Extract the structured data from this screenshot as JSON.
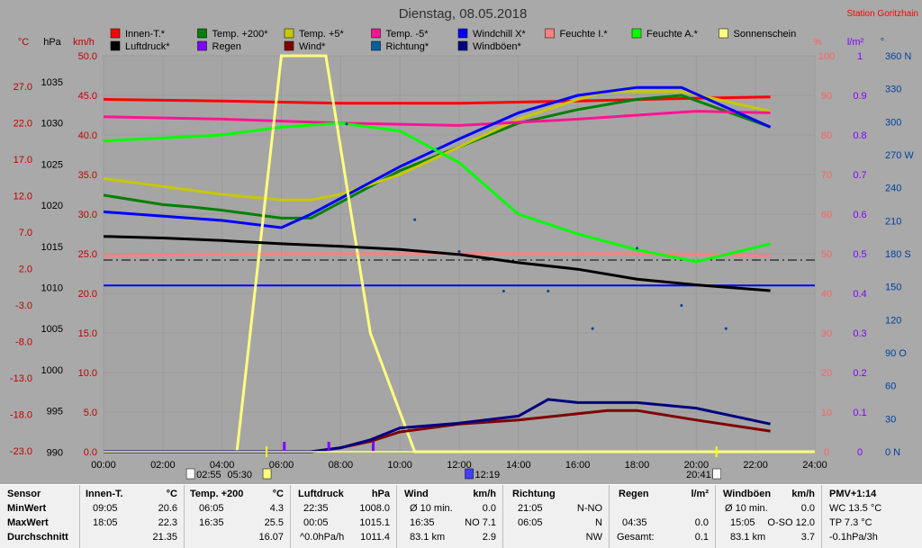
{
  "header": {
    "title": "Dienstag, 08.05.2018",
    "station": "Station Goritzhain"
  },
  "legend": [
    {
      "label": "Innen-T.*",
      "color": "#ff0000"
    },
    {
      "label": "Temp. +200*",
      "color": "#008000"
    },
    {
      "label": "Temp. +5*",
      "color": "#c8c800"
    },
    {
      "label": "Temp. -5*",
      "color": "#ff1493"
    },
    {
      "label": "Windchill X*",
      "color": "#0000ff"
    },
    {
      "label": "Feuchte I.*",
      "color": "#ff8080"
    },
    {
      "label": "Feuchte A.*",
      "color": "#00ff00"
    },
    {
      "label": "Sonnenschein",
      "color": "#ffff80"
    },
    {
      "label": "Luftdruck*",
      "color": "#000000"
    },
    {
      "label": "Regen",
      "color": "#8000ff"
    },
    {
      "label": "Wind*",
      "color": "#800000"
    },
    {
      "label": "Richtung*",
      "color": "#0060a0"
    },
    {
      "label": "Windböen*",
      "color": "#000080"
    }
  ],
  "axes": {
    "temp_label": "°C",
    "pressure_label": "hPa",
    "wind_label": "km/h",
    "humidity_label": "%",
    "rain_label": "l/m²",
    "dir_label": "°",
    "temp_ticks": [
      "27.0",
      "22.0",
      "17.0",
      "12.0",
      "7.0",
      "2.0",
      "-3.0",
      "-8.0",
      "-13.0",
      "-18.0",
      "-23.0"
    ],
    "pressure_ticks": [
      "1035",
      "1030",
      "1025",
      "1020",
      "1015",
      "1010",
      "1005",
      "1000",
      "995",
      "990"
    ],
    "wind_ticks": [
      "50.0",
      "45.0",
      "40.0",
      "35.0",
      "30.0",
      "25.0",
      "20.0",
      "15.0",
      "10.0",
      "5.0",
      "0.0"
    ],
    "humidity_ticks": [
      "100",
      "90",
      "80",
      "70",
      "60",
      "50",
      "40",
      "30",
      "20",
      "10",
      "0"
    ],
    "rain_ticks": [
      "1",
      "0.9",
      "0.8",
      "0.7",
      "0.6",
      "0.5",
      "0.4",
      "0.3",
      "0.2",
      "0.1",
      "0"
    ],
    "dir_ticks": [
      "360 N",
      "330",
      "300",
      "270 W",
      "240",
      "210",
      "180 S",
      "150",
      "120",
      "90 O",
      "60",
      "30",
      "0 N"
    ],
    "time_ticks": [
      "00:00",
      "02:00",
      "04:00",
      "06:00",
      "08:00",
      "10:00",
      "12:00",
      "14:00",
      "16:00",
      "18:00",
      "20:00",
      "22:00",
      "24:00"
    ]
  },
  "markers": {
    "sunrise": "02:55",
    "sunset_rise_box": "05:30",
    "noon": "12:19",
    "sunset": "20:41"
  },
  "chart_data": {
    "type": "line",
    "x_unit": "hours",
    "xlim": [
      0,
      24
    ],
    "series": [
      {
        "name": "Innen-T.*",
        "axis": "temp",
        "color": "#ff0000",
        "points": [
          [
            0,
            21.5
          ],
          [
            4,
            21.3
          ],
          [
            8,
            21.0
          ],
          [
            12,
            21.0
          ],
          [
            16,
            21.3
          ],
          [
            19.5,
            21.6
          ],
          [
            22.5,
            21.8
          ]
        ]
      },
      {
        "name": "Temp. +200*",
        "axis": "temp",
        "color": "#008000",
        "points": [
          [
            0,
            9.4
          ],
          [
            2,
            8.2
          ],
          [
            3,
            7.9
          ],
          [
            4,
            7.5
          ],
          [
            6,
            6.5
          ],
          [
            7,
            6.5
          ],
          [
            8,
            8.5
          ],
          [
            10,
            12.5
          ],
          [
            12,
            15.5
          ],
          [
            14,
            18.5
          ],
          [
            16,
            20.2
          ],
          [
            18,
            21.5
          ],
          [
            19.5,
            22.0
          ],
          [
            21,
            20.0
          ],
          [
            22.5,
            18.0
          ]
        ]
      },
      {
        "name": "Temp. +5*",
        "axis": "temp",
        "color": "#c8c800",
        "points": [
          [
            0,
            11.5
          ],
          [
            2,
            10.5
          ],
          [
            4,
            9.5
          ],
          [
            6,
            8.8
          ],
          [
            7,
            8.8
          ],
          [
            8,
            9.5
          ],
          [
            10,
            12
          ],
          [
            12,
            15.5
          ],
          [
            14,
            19
          ],
          [
            16,
            21.5
          ],
          [
            17,
            22.5
          ],
          [
            19.5,
            22.5
          ],
          [
            22.5,
            20.0
          ]
        ]
      },
      {
        "name": "Temp. -5*",
        "axis": "temp",
        "color": "#ff1493",
        "points": [
          [
            0,
            19.3
          ],
          [
            4,
            19.0
          ],
          [
            8,
            18.5
          ],
          [
            12,
            18.2
          ],
          [
            16,
            19
          ],
          [
            18,
            19.5
          ],
          [
            20,
            20.0
          ],
          [
            22.5,
            19.8
          ]
        ]
      },
      {
        "name": "Windchill X*",
        "axis": "temp",
        "color": "#0000ff",
        "points": [
          [
            0,
            7.3
          ],
          [
            4,
            6.2
          ],
          [
            6,
            5.3
          ],
          [
            7,
            7.0
          ],
          [
            8,
            9
          ],
          [
            10,
            13
          ],
          [
            12,
            16.5
          ],
          [
            14,
            19.8
          ],
          [
            16,
            22
          ],
          [
            18,
            23.0
          ],
          [
            19.5,
            23.0
          ],
          [
            21,
            20.5
          ],
          [
            22.5,
            18.0
          ]
        ]
      },
      {
        "name": "Feuchte I.*",
        "axis": "humidity",
        "color": "#ff8080",
        "points": [
          [
            0,
            49.5
          ],
          [
            6,
            50.0
          ],
          [
            12,
            50.0
          ],
          [
            18,
            50.0
          ],
          [
            22.5,
            49.5
          ]
        ]
      },
      {
        "name": "Feuchte A.*",
        "axis": "humidity",
        "color": "#00ff00",
        "points": [
          [
            0,
            78.5
          ],
          [
            4,
            80.0
          ],
          [
            6,
            82
          ],
          [
            8,
            83
          ],
          [
            10,
            81
          ],
          [
            12,
            73
          ],
          [
            14,
            60
          ],
          [
            16,
            55
          ],
          [
            18,
            51
          ],
          [
            20,
            48
          ],
          [
            22.5,
            52.5
          ]
        ]
      },
      {
        "name": "Sonnenschein",
        "axis": "percent",
        "color": "#ffff80",
        "points": [
          [
            0,
            0
          ],
          [
            4.5,
            0
          ],
          [
            6,
            100
          ],
          [
            7.5,
            100
          ],
          [
            9,
            30
          ],
          [
            10.5,
            0
          ],
          [
            24,
            0
          ]
        ]
      },
      {
        "name": "Luftdruck*",
        "axis": "pressure",
        "color": "#000000",
        "points": [
          [
            0,
            1016.2
          ],
          [
            2,
            1016.0
          ],
          [
            4,
            1015.7
          ],
          [
            6,
            1015.3
          ],
          [
            8,
            1015.0
          ],
          [
            10,
            1014.6
          ],
          [
            12,
            1014.0
          ],
          [
            14,
            1013.0
          ],
          [
            16,
            1012.2
          ],
          [
            18,
            1011.0
          ],
          [
            20,
            1010.3
          ],
          [
            22.5,
            1009.6
          ]
        ]
      },
      {
        "name": "Wind*",
        "axis": "wind",
        "color": "#800000",
        "points": [
          [
            0,
            0
          ],
          [
            7,
            0
          ],
          [
            8,
            0.5
          ],
          [
            9,
            1.3
          ],
          [
            10,
            2.5
          ],
          [
            12,
            3.5
          ],
          [
            14,
            4.0
          ],
          [
            16,
            4.8
          ],
          [
            17,
            5.2
          ],
          [
            18,
            5.2
          ],
          [
            20,
            4.0
          ],
          [
            22.5,
            2.6
          ]
        ]
      },
      {
        "name": "Windböen*",
        "axis": "wind",
        "color": "#000080",
        "points": [
          [
            0,
            0
          ],
          [
            7,
            0
          ],
          [
            8,
            0.5
          ],
          [
            9,
            1.5
          ],
          [
            10,
            3.0
          ],
          [
            12,
            3.6
          ],
          [
            14,
            4.5
          ],
          [
            15,
            6.6
          ],
          [
            16,
            6.2
          ],
          [
            18,
            6.2
          ],
          [
            20,
            5.5
          ],
          [
            22.5,
            3.5
          ]
        ]
      }
    ],
    "references": [
      {
        "name": "dashed",
        "axis": "wind",
        "value": 24.2,
        "color": "#000000",
        "style": "dashed"
      },
      {
        "name": "blue",
        "axis": "wind",
        "value": 21.0,
        "color": "#0000ff",
        "style": "solid"
      }
    ],
    "direction_points": [
      [
        8.2,
        298
      ],
      [
        10.5,
        211
      ],
      [
        12,
        182
      ],
      [
        13.5,
        146
      ],
      [
        15,
        146
      ],
      [
        16.5,
        112
      ],
      [
        18,
        185
      ],
      [
        19.5,
        133
      ],
      [
        21,
        112
      ]
    ],
    "rain_marks": [
      6.1,
      7.6,
      9.1
    ]
  },
  "table": {
    "rows_labels": {
      "sensor": "Sensor",
      "min": "MinWert",
      "max": "MaxWert",
      "avg": "Durchschnitt"
    },
    "innen": {
      "title": "Innen-T.",
      "unit": "°C",
      "min_time": "09:05",
      "min_val": "20.6",
      "max_time": "18:05",
      "max_val": "22.3",
      "avg_val": "21.35"
    },
    "temp200": {
      "title": "Temp. +200",
      "unit": "°C",
      "min_time": "06:05",
      "min_val": "4.3",
      "max_time": "16:35",
      "max_val": "25.5",
      "avg_val": "16.07"
    },
    "luft": {
      "title": "Luftdruck",
      "unit": "hPa",
      "min_time": "22:35",
      "min_val": "1008.0",
      "max_time": "00:05",
      "max_val": "1015.1",
      "avg_time": "^0.0hPa/h",
      "avg_val": "1011.4"
    },
    "wind": {
      "title": "Wind",
      "unit": "km/h",
      "min_time": "Ø 10 min.",
      "min_val": "0.0",
      "max_time": "16:35",
      "max_val": "NO 7.1",
      "avg_time": "83.1 km",
      "avg_val": "2.9"
    },
    "richtung": {
      "title": "Richtung",
      "min_time": "21:05",
      "min_val": "N-NO",
      "max_time": "06:05",
      "max_val": "N",
      "avg_val": "NW"
    },
    "regen": {
      "title": "Regen",
      "unit": "l/m²",
      "max_time": "04:35",
      "max_val": "0.0",
      "avg_time": "Gesamt:",
      "avg_val": "0.1"
    },
    "boeen": {
      "title": "Windböen",
      "unit": "km/h",
      "min_time": "Ø 10 min.",
      "min_val": "0.0",
      "max_time": "15:05",
      "max_val": "O-SO 12.0",
      "avg_time": "83.1 km",
      "avg_val": "3.7"
    },
    "pmv": {
      "title": "PMV+1:14",
      "min_val": "WC 13.5 °C",
      "max_val": "TP 7.3 °C",
      "avg_val": "-0.1hPa/3h"
    }
  }
}
